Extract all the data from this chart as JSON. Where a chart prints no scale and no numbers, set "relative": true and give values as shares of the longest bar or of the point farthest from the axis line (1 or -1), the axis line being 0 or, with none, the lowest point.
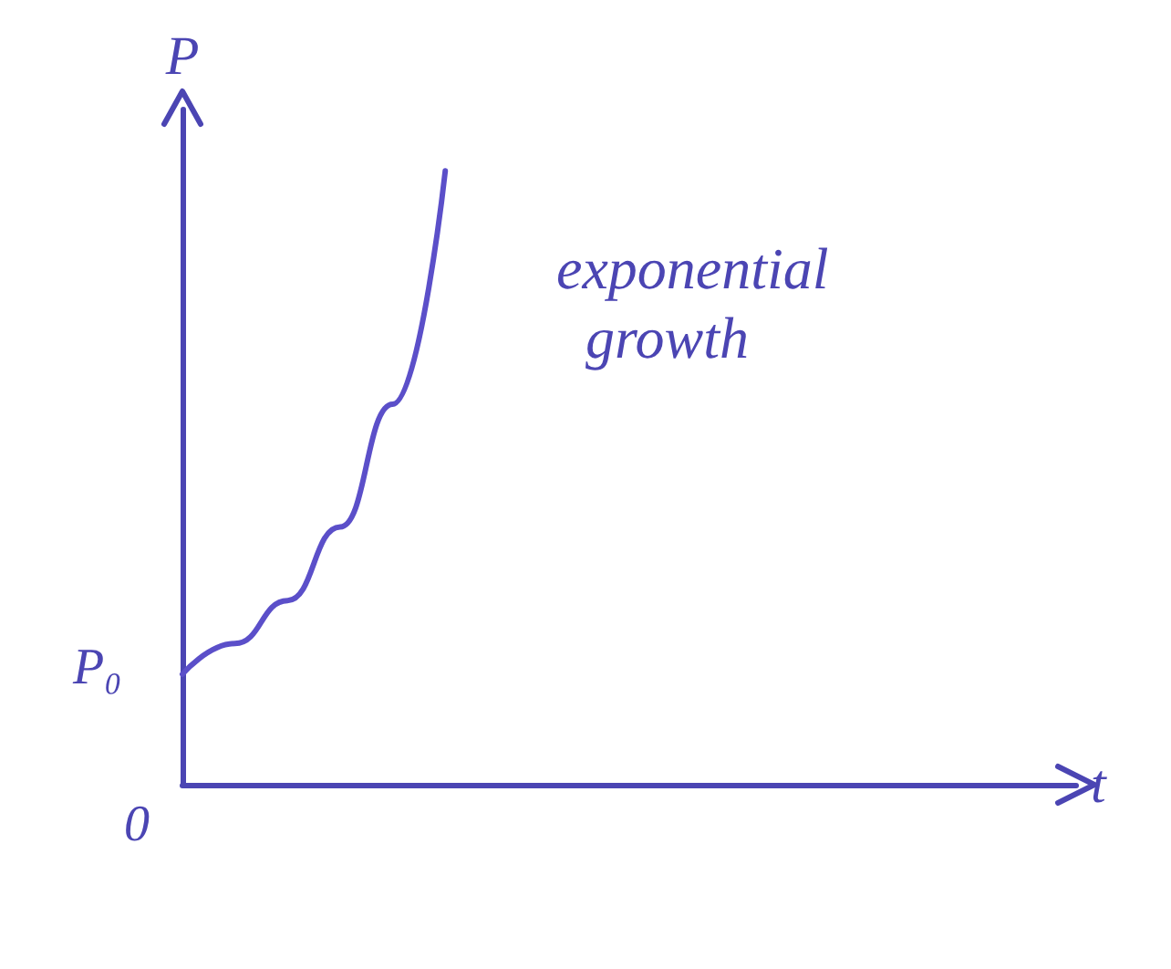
{
  "chart_data": {
    "type": "line",
    "relative": true,
    "xlabel": "t",
    "ylabel": "P",
    "categories": [
      null,
      null,
      null,
      null,
      null,
      null,
      null,
      null,
      null,
      null,
      null,
      null,
      null,
      null,
      null,
      null,
      null,
      null
    ],
    "series": [
      {
        "color": "#5b4fc9",
        "values": [
          0.18,
          0.23,
          0.3,
          0.42,
          0.62,
          1,
          null,
          null,
          null,
          null,
          null,
          null,
          null,
          null,
          null,
          null,
          null,
          null
        ]
      }
    ],
    "annotations": [
      "exponential growth",
      "0",
      "P₀"
    ],
    "marker": "none",
    "line_style": "solid",
    "grid": false
  }
}
